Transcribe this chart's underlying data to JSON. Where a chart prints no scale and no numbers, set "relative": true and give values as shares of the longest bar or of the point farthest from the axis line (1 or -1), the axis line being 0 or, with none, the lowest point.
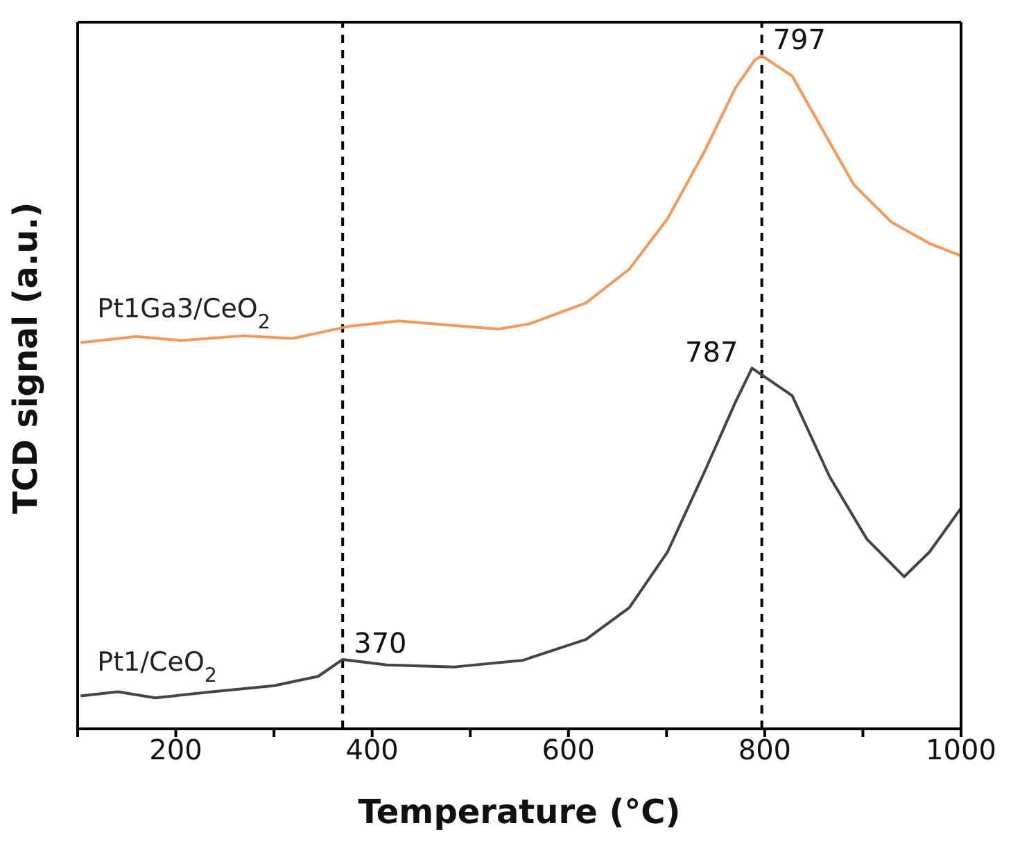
{
  "chart_data": {
    "type": "line",
    "relative": true,
    "xlabel": "Temperature (°C)",
    "ylabel": "TCD signal (a.u.)",
    "xlim": [
      100,
      1000
    ],
    "xticks": [
      {
        "value": 100,
        "label": null
      },
      200,
      {
        "value": 300,
        "label": null
      },
      400,
      {
        "value": 500,
        "label": null
      },
      600,
      {
        "value": 700,
        "label": null
      },
      800,
      {
        "value": 900,
        "label": null
      },
      1000
    ],
    "tick_labels": "x",
    "legend": false,
    "grid": false,
    "marker": "none",
    "line_style": "solid",
    "series": [
      {
        "name": "Pt1Ga3/CeO$_{2}$",
        "color": "#f29a5c",
        "x": [
          103,
          160,
          205,
          268,
          319,
          376,
          427,
          478,
          529,
          561,
          618,
          662,
          701,
          739,
          770,
          790,
          797,
          828,
          860,
          891,
          929,
          968,
          1000
        ],
        "values": [
          0.574,
          0.583,
          0.577,
          0.584,
          0.58,
          0.598,
          0.606,
          0.6,
          0.594,
          0.602,
          0.633,
          0.683,
          0.758,
          0.859,
          0.952,
          0.994,
          1.0,
          0.97,
          0.887,
          0.808,
          0.753,
          0.721,
          0.703
        ]
      },
      {
        "name": "Pt1/CeO$_{2}$",
        "color": "#444444",
        "x": [
          103,
          141,
          179,
          237,
          300,
          345,
          370,
          415,
          484,
          554,
          618,
          662,
          701,
          739,
          770,
          787,
          828,
          866,
          904,
          942,
          968,
          1000
        ],
        "values": [
          0.049,
          0.055,
          0.046,
          0.055,
          0.064,
          0.078,
          0.103,
          0.095,
          0.092,
          0.102,
          0.133,
          0.18,
          0.263,
          0.383,
          0.485,
          0.536,
          0.495,
          0.375,
          0.282,
          0.226,
          0.263,
          0.328
        ]
      }
    ],
    "ref_lines": [
      {
        "axis": "x",
        "value": 370,
        "color": "#000000",
        "line_style": "dashed"
      },
      {
        "axis": "x",
        "value": 797,
        "color": "#000000",
        "line_style": "dashed"
      }
    ],
    "annotations": [
      {
        "text": "797",
        "x": 797,
        "y": 1.0
      },
      {
        "text": "787",
        "x": 787,
        "y": 0.536
      },
      {
        "text": "370",
        "x": 370,
        "y": 0.103
      }
    ]
  }
}
